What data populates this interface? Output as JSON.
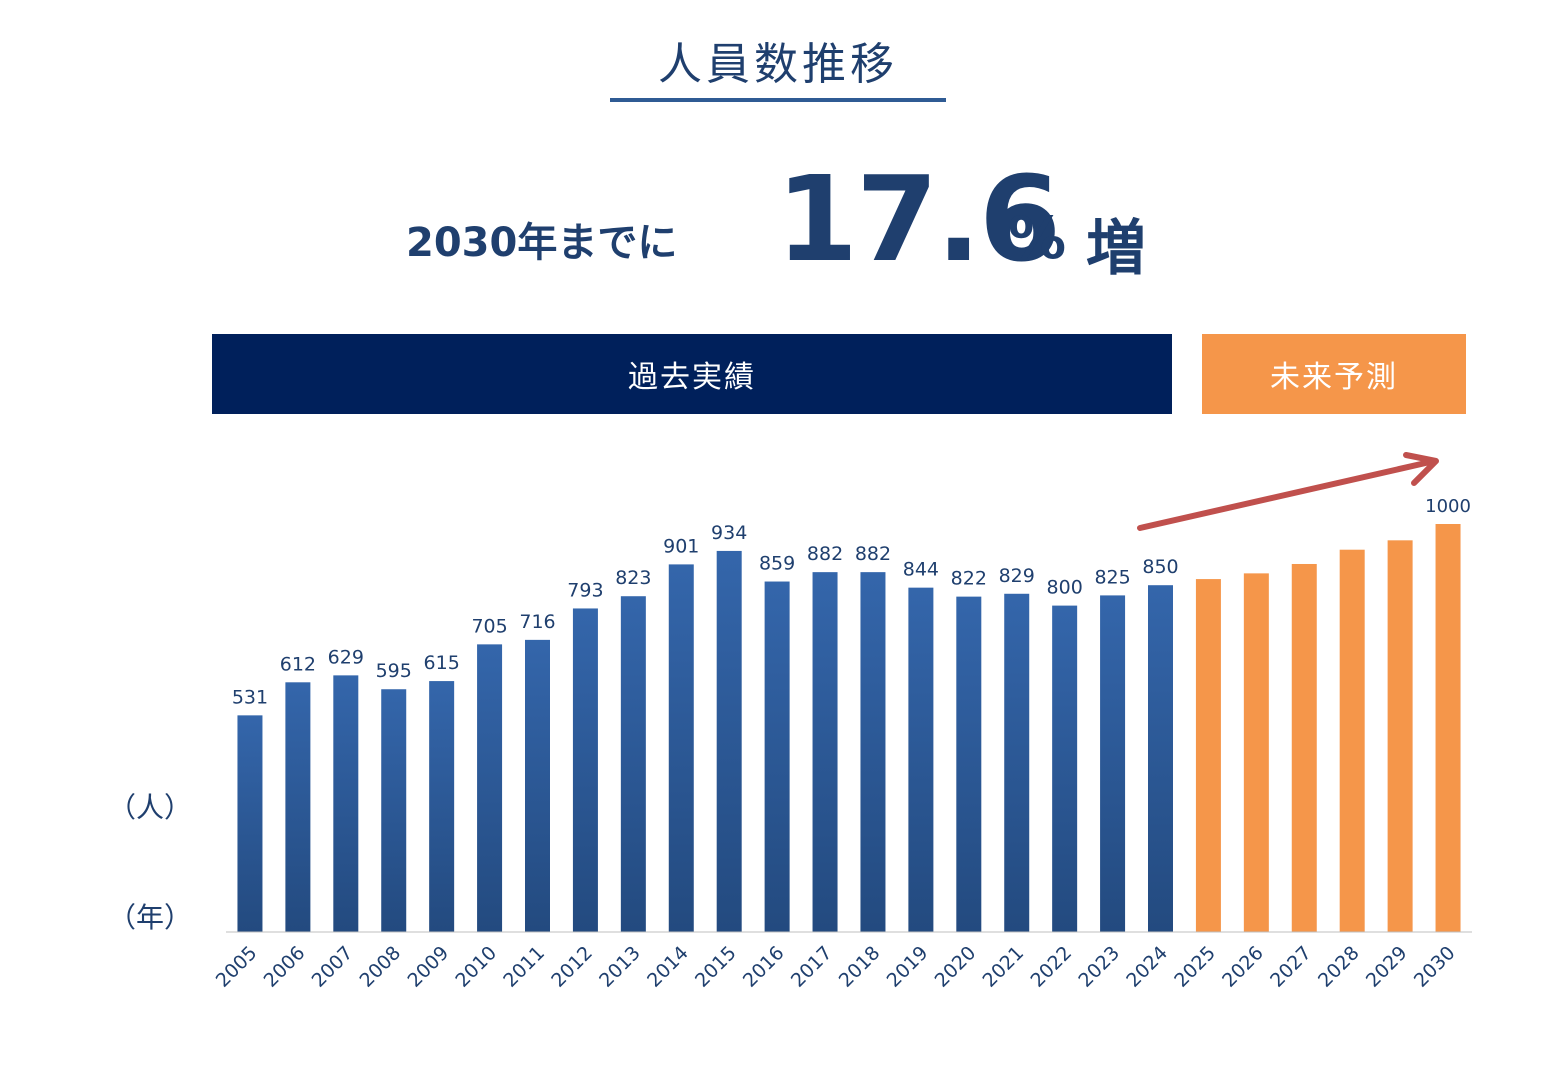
{
  "title": "人員数推移",
  "headline": {
    "prefix": "2030年までに",
    "number": "17.6",
    "percent": "%",
    "suffix": "増"
  },
  "bands": {
    "past": "過去実績",
    "future": "未来予測"
  },
  "units": {
    "y": "（人）",
    "x": "（年）"
  },
  "colors": {
    "navy": "#1f3f6e",
    "bar_actual": "#2e5e9e",
    "bar_forecast": "#f5964a",
    "arrow": "#c0504d"
  },
  "chart_data": {
    "type": "bar",
    "categories": [
      "2005",
      "2006",
      "2007",
      "2008",
      "2009",
      "2010",
      "2011",
      "2012",
      "2013",
      "2014",
      "2015",
      "2016",
      "2017",
      "2018",
      "2019",
      "2020",
      "2021",
      "2022",
      "2023",
      "2024",
      "2025",
      "2026",
      "2027",
      "2028",
      "2029",
      "2030"
    ],
    "series": [
      {
        "name": "過去実績",
        "values": [
          531,
          612,
          629,
          595,
          615,
          705,
          716,
          793,
          823,
          901,
          934,
          859,
          882,
          882,
          844,
          822,
          829,
          800,
          825,
          850,
          null,
          null,
          null,
          null,
          null,
          null
        ],
        "labels": [
          "531",
          "612",
          "629",
          "595",
          "615",
          "705",
          "716",
          "793",
          "823",
          "901",
          "934",
          "859",
          "882",
          "882",
          "844",
          "822",
          "829",
          "800",
          "825",
          "850",
          "",
          "",
          "",
          "",
          "",
          ""
        ]
      },
      {
        "name": "未来予測",
        "values": [
          null,
          null,
          null,
          null,
          null,
          null,
          null,
          null,
          null,
          null,
          null,
          null,
          null,
          null,
          null,
          null,
          null,
          null,
          null,
          null,
          865,
          879,
          902,
          937,
          960,
          1000
        ],
        "labels": [
          "",
          "",
          "",
          "",
          "",
          "",
          "",
          "",
          "",
          "",
          "",
          "",
          "",
          "",
          "",
          "",
          "",
          "",
          "",
          "",
          "",
          "",
          "",
          "",
          "",
          "1000"
        ]
      }
    ],
    "ylim": [
      0,
      1000
    ],
    "grid": false,
    "annotations": [
      "upward trend arrow over forecast years"
    ]
  }
}
